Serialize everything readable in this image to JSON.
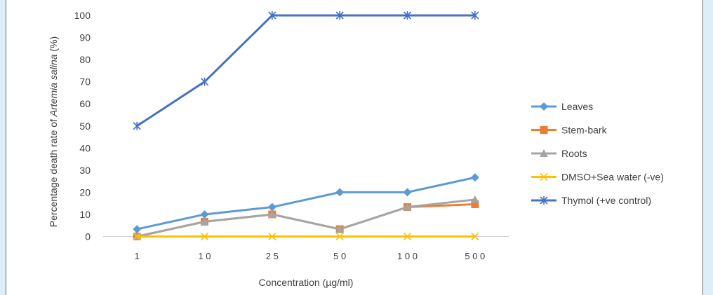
{
  "chart_data": {
    "type": "line",
    "categories": [
      "1",
      "10",
      "25",
      "50",
      "100",
      "500"
    ],
    "x_tick_labels": [
      "1",
      "1 0",
      "2 5",
      "5 0",
      "1 0 0",
      "5 0 0"
    ],
    "xlabel": "Concentration (µg/ml)",
    "ylabel_parts": [
      "Percentage death rate of ",
      "Artemia salina",
      " (%)"
    ],
    "ylim": [
      0,
      100
    ],
    "y_ticks": [
      "0",
      "10",
      "20",
      "30",
      "40",
      "50",
      "60",
      "70",
      "80",
      "90",
      "100"
    ],
    "grid": false,
    "legend_position": "right",
    "series": [
      {
        "name": "Leaves",
        "values": [
          3.3,
          10,
          13.3,
          20,
          20,
          26.7
        ],
        "color": "#5b9bd5",
        "marker": "diamond"
      },
      {
        "name": "Stem-bark",
        "values": [
          0,
          6.7,
          10,
          3.3,
          13.3,
          14.6
        ],
        "color": "#ed7d31",
        "marker": "square"
      },
      {
        "name": "Roots",
        "values": [
          0,
          6.7,
          10,
          3.3,
          13.3,
          16.7
        ],
        "color": "#a5a5a5",
        "marker": "triangle"
      },
      {
        "name": "DMSO+Sea water (-ve)",
        "values": [
          0,
          0,
          0,
          0,
          0,
          0
        ],
        "color": "#ffc000",
        "marker": "x"
      },
      {
        "name": "Thymol (+ve control)",
        "values": [
          50,
          70,
          100,
          100,
          100,
          100
        ],
        "color": "#4472c4",
        "marker": "star"
      }
    ]
  }
}
